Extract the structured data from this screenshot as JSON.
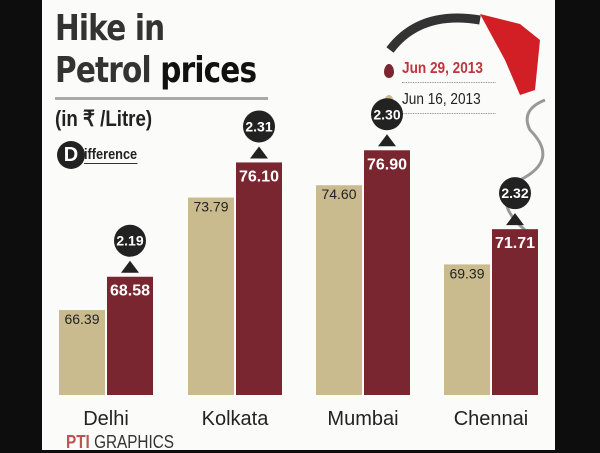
{
  "chart_data": {
    "type": "bar",
    "title": "Hike in Petrol prices",
    "subtitle": "(in ₹ /Litre)",
    "difference_label": "Difference",
    "categories": [
      "Delhi",
      "Kolkata",
      "Mumbai",
      "Chennai"
    ],
    "series": [
      {
        "name": "Jun 16, 2013",
        "color": "#c9bb8e",
        "values": [
          66.39,
          73.79,
          74.6,
          69.39
        ]
      },
      {
        "name": "Jun 29, 2013",
        "color": "#7a2630",
        "values": [
          68.58,
          76.1,
          76.9,
          71.71
        ]
      }
    ],
    "differences": [
      "2.19",
      "2.31",
      "2.30",
      "2.32"
    ],
    "legend_placement": "top-right",
    "grid": false
  },
  "credit": {
    "logo": "PTI",
    "text": "GRAPHICS"
  }
}
